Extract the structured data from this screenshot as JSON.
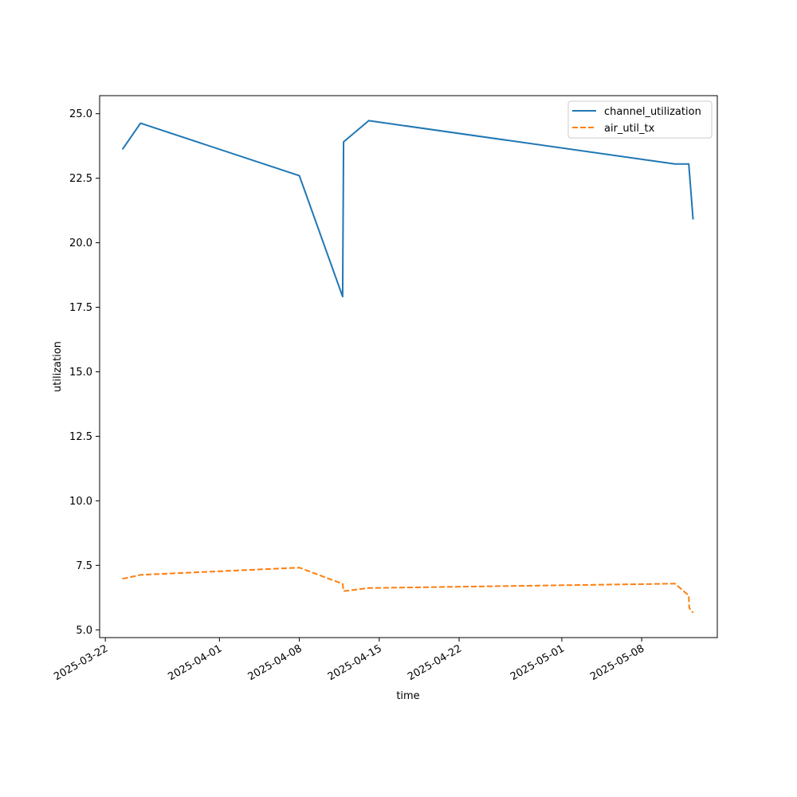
{
  "chart_data": {
    "type": "line",
    "title": "",
    "xlabel": "time",
    "ylabel": "utilization",
    "x_type": "datetime",
    "xlim": [
      "2025-03-21T12:00",
      "2025-05-14T15:00"
    ],
    "ylim": [
      4.7,
      25.7
    ],
    "x_ticks": [
      "2025-03-22",
      "2025-04-01",
      "2025-04-08",
      "2025-04-15",
      "2025-04-22",
      "2025-05-01",
      "2025-05-08"
    ],
    "y_ticks": [
      "5.0",
      "7.5",
      "10.0",
      "12.5",
      "15.0",
      "17.5",
      "20.0",
      "22.5",
      "25.0"
    ],
    "grid": false,
    "legend": "top-right",
    "series": [
      {
        "name": "channel_utilization",
        "color": "#1f77b4",
        "dash": "solid",
        "points": [
          {
            "x": "2025-03-23T12:00",
            "y": 23.62
          },
          {
            "x": "2025-03-25T02:00",
            "y": 24.63
          },
          {
            "x": "2025-04-08T00:00",
            "y": 22.6
          },
          {
            "x": "2025-04-11T19:00",
            "y": 17.91
          },
          {
            "x": "2025-04-11T21:00",
            "y": 23.91
          },
          {
            "x": "2025-04-14T02:00",
            "y": 24.73
          },
          {
            "x": "2025-05-10T22:00",
            "y": 23.05
          },
          {
            "x": "2025-05-12T03:00",
            "y": 23.05
          },
          {
            "x": "2025-05-12T12:00",
            "y": 20.9
          }
        ]
      },
      {
        "name": "air_util_tx",
        "color": "#ff7f0e",
        "dash": "dashed",
        "points": [
          {
            "x": "2025-03-23T12:00",
            "y": 6.98
          },
          {
            "x": "2025-03-25T02:00",
            "y": 7.13
          },
          {
            "x": "2025-04-08T00:00",
            "y": 7.41
          },
          {
            "x": "2025-04-11T19:00",
            "y": 6.78
          },
          {
            "x": "2025-04-11T21:00",
            "y": 6.5
          },
          {
            "x": "2025-04-14T02:00",
            "y": 6.62
          },
          {
            "x": "2025-05-10T22:00",
            "y": 6.79
          },
          {
            "x": "2025-05-12T03:00",
            "y": 6.33
          },
          {
            "x": "2025-05-12T04:00",
            "y": 5.85
          },
          {
            "x": "2025-05-12T12:00",
            "y": 5.66
          }
        ]
      }
    ]
  }
}
